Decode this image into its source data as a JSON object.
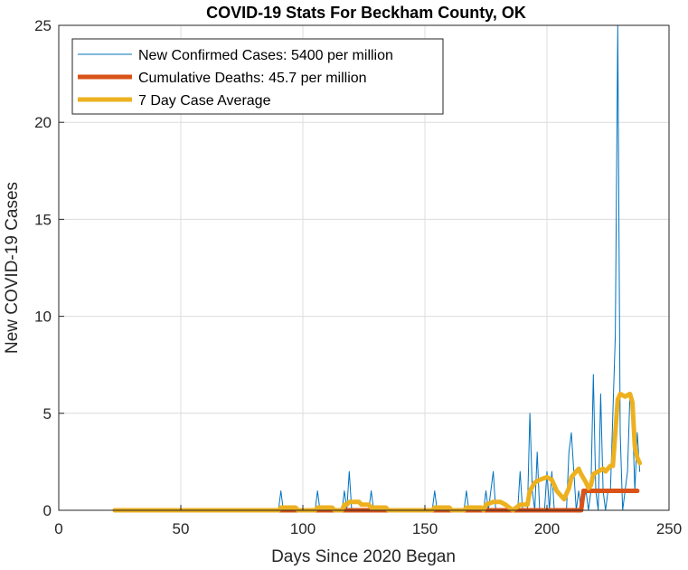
{
  "chart_data": {
    "type": "line",
    "title": "COVID-19 Stats For Beckham County, OK",
    "xlabel": "Days Since 2020 Began",
    "ylabel": "New COVID-19 Cases",
    "xlim": [
      0,
      250
    ],
    "ylim": [
      0,
      25
    ],
    "xticks": [
      "0",
      "50",
      "100",
      "150",
      "200",
      "250"
    ],
    "yticks": [
      "0",
      "5",
      "10",
      "15",
      "20",
      "25"
    ],
    "grid": true,
    "legend_position": "top-left",
    "series": [
      {
        "name": "New Confirmed Cases: 5400 per million",
        "color": "#0072BD",
        "points": [
          [
            23,
            0
          ],
          [
            90,
            0
          ],
          [
            91,
            1
          ],
          [
            92,
            0
          ],
          [
            105,
            0
          ],
          [
            106,
            1
          ],
          [
            107,
            0
          ],
          [
            116,
            0
          ],
          [
            117,
            1
          ],
          [
            118,
            0
          ],
          [
            119,
            2
          ],
          [
            120,
            0
          ],
          [
            127,
            0
          ],
          [
            128,
            1
          ],
          [
            129,
            0
          ],
          [
            153,
            0
          ],
          [
            154,
            1
          ],
          [
            155,
            0
          ],
          [
            166,
            0
          ],
          [
            167,
            1
          ],
          [
            168,
            0
          ],
          [
            174,
            0
          ],
          [
            175,
            1
          ],
          [
            176,
            0
          ],
          [
            178,
            2
          ],
          [
            179,
            0
          ],
          [
            188,
            0
          ],
          [
            189,
            2
          ],
          [
            190,
            0
          ],
          [
            192,
            0
          ],
          [
            193,
            5
          ],
          [
            194,
            1
          ],
          [
            195,
            0
          ],
          [
            196,
            3
          ],
          [
            197,
            0
          ],
          [
            199,
            0
          ],
          [
            200,
            2
          ],
          [
            201,
            0
          ],
          [
            202,
            2
          ],
          [
            203,
            0
          ],
          [
            208,
            0
          ],
          [
            209,
            3
          ],
          [
            210,
            4
          ],
          [
            211,
            2
          ],
          [
            212,
            0
          ],
          [
            213,
            1
          ],
          [
            214,
            0
          ],
          [
            216,
            1
          ],
          [
            217,
            0
          ],
          [
            218,
            1
          ],
          [
            219,
            7
          ],
          [
            220,
            1
          ],
          [
            221,
            0
          ],
          [
            222,
            6
          ],
          [
            223,
            1
          ],
          [
            224,
            0
          ],
          [
            225,
            1
          ],
          [
            226,
            1
          ],
          [
            227,
            5
          ],
          [
            228,
            9
          ],
          [
            229,
            25
          ],
          [
            230,
            4
          ],
          [
            231,
            0
          ],
          [
            232,
            1
          ],
          [
            233,
            2
          ],
          [
            234,
            6
          ],
          [
            235,
            5
          ],
          [
            236,
            1
          ],
          [
            237,
            4
          ],
          [
            238,
            2
          ]
        ]
      },
      {
        "name": "Cumulative Deaths: 45.7 per million",
        "color": "#D95319",
        "points": [
          [
            23,
            0
          ],
          [
            214,
            0
          ],
          [
            215,
            1
          ],
          [
            237,
            1
          ]
        ]
      },
      {
        "name": "7 Day Case Average",
        "color": "#EDB120",
        "points": [
          [
            23,
            0
          ],
          [
            90,
            0
          ],
          [
            91,
            0.14
          ],
          [
            97,
            0.14
          ],
          [
            98,
            0
          ],
          [
            105,
            0
          ],
          [
            106,
            0.14
          ],
          [
            112,
            0.14
          ],
          [
            113,
            0
          ],
          [
            116,
            0
          ],
          [
            117,
            0.29
          ],
          [
            118,
            0.29
          ],
          [
            119,
            0.43
          ],
          [
            123,
            0.43
          ],
          [
            124,
            0.29
          ],
          [
            127,
            0.29
          ],
          [
            128,
            0.14
          ],
          [
            134,
            0.14
          ],
          [
            135,
            0
          ],
          [
            153,
            0
          ],
          [
            154,
            0.14
          ],
          [
            160,
            0.14
          ],
          [
            161,
            0
          ],
          [
            166,
            0
          ],
          [
            167,
            0.14
          ],
          [
            173,
            0.14
          ],
          [
            174,
            0
          ],
          [
            175,
            0.29
          ],
          [
            178,
            0.43
          ],
          [
            181,
            0.43
          ],
          [
            183,
            0.29
          ],
          [
            186,
            0
          ],
          [
            189,
            0.29
          ],
          [
            192,
            0.29
          ],
          [
            193,
            1
          ],
          [
            195,
            1.43
          ],
          [
            197,
            1.57
          ],
          [
            200,
            1.71
          ],
          [
            202,
            1.57
          ],
          [
            204,
            1
          ],
          [
            207,
            0.57
          ],
          [
            209,
            1.14
          ],
          [
            210,
            1.71
          ],
          [
            212,
            2
          ],
          [
            213,
            2.14
          ],
          [
            214,
            1.86
          ],
          [
            216,
            1.43
          ],
          [
            217,
            1.14
          ],
          [
            218,
            1.29
          ],
          [
            219,
            1.86
          ],
          [
            221,
            2
          ],
          [
            223,
            2.14
          ],
          [
            224,
            2
          ],
          [
            226,
            2.29
          ],
          [
            227,
            2.29
          ],
          [
            229,
            5.71
          ],
          [
            230,
            6
          ],
          [
            232,
            5.86
          ],
          [
            234,
            6
          ],
          [
            235,
            5.57
          ],
          [
            236,
            3.29
          ],
          [
            237,
            2.71
          ],
          [
            238,
            2.43
          ]
        ]
      }
    ]
  }
}
